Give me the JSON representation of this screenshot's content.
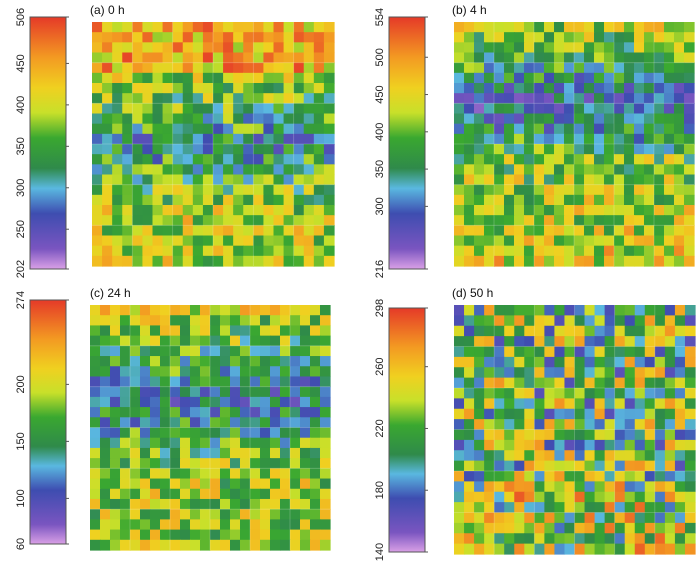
{
  "chart_data": [
    {
      "type": "heatmap",
      "title": "(a) 0 h",
      "colorbar": {
        "min": 202,
        "max": 506,
        "ticks": [
          506,
          450,
          400,
          350,
          300,
          250,
          202
        ]
      },
      "pattern": "high-top-bottom, low band in middle",
      "seed": 11
    },
    {
      "type": "heatmap",
      "title": "(b) 4 h",
      "colorbar": {
        "min": 216,
        "max": 554,
        "ticks": [
          554,
          500,
          450,
          400,
          350,
          300,
          216
        ]
      },
      "pattern": "low band upper-middle, moderate elsewhere",
      "seed": 23
    },
    {
      "type": "heatmap",
      "title": "(c) 24 h",
      "colorbar": {
        "min": 60,
        "max": 274,
        "ticks": [
          274,
          200,
          150,
          100,
          60
        ]
      },
      "pattern": "low band upper-middle, mixed lower",
      "seed": 37
    },
    {
      "type": "heatmap",
      "title": "(d) 50 h",
      "colorbar": {
        "min": 140,
        "max": 298,
        "ticks": [
          298,
          260,
          220,
          180,
          140
        ]
      },
      "pattern": "patchy low spots throughout",
      "seed": 53
    }
  ],
  "colors": {
    "scale": [
      "#d36cd6",
      "#4f52b8",
      "#5aa7d8",
      "#238a3a",
      "#3fab2f",
      "#e6e62a",
      "#f5a020",
      "#e8452a"
    ]
  }
}
